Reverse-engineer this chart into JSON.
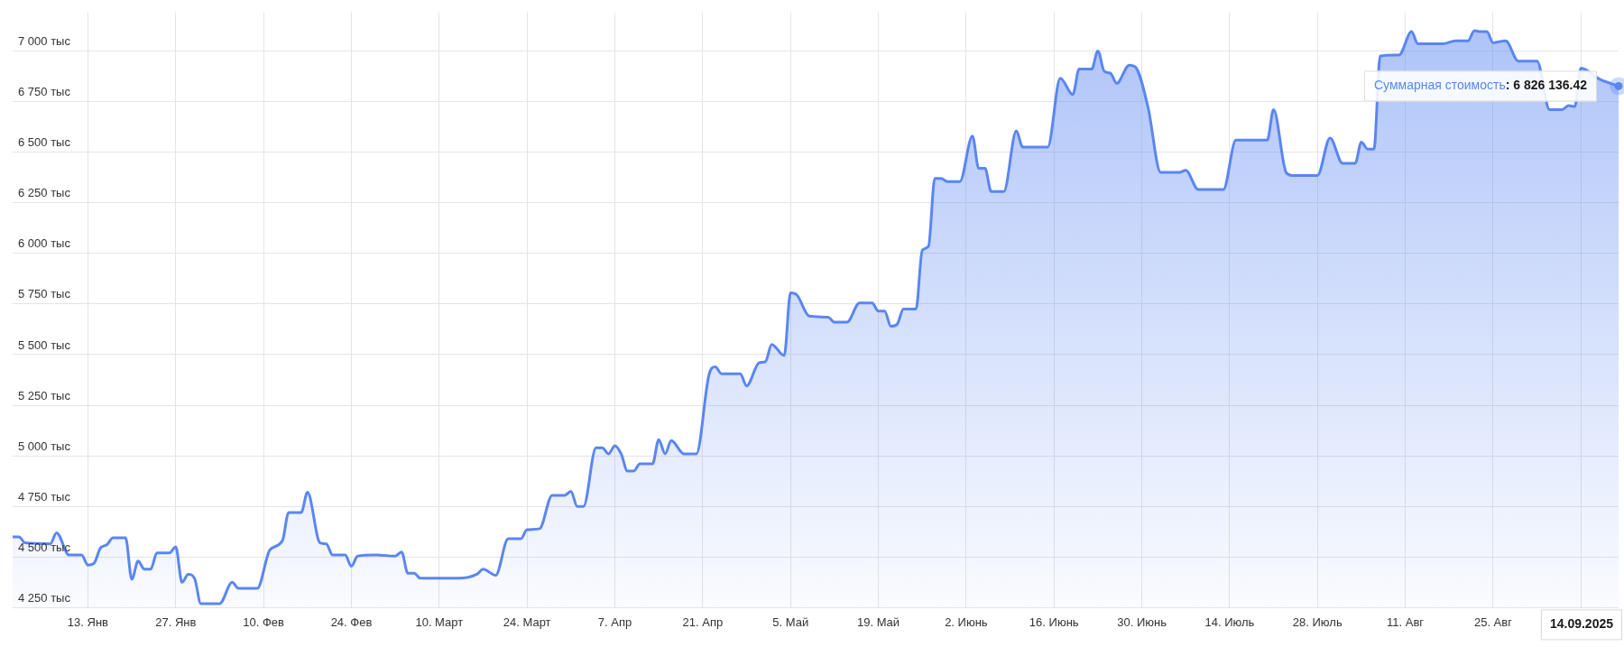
{
  "chart_data": {
    "type": "area",
    "grid": true,
    "legend": false,
    "marker": "none",
    "line_style": "solid",
    "xlim": [
      "2025-01-01",
      "2025-09-14"
    ],
    "xticks": [
      {
        "value": "2025-01-13",
        "label": "13. Янв"
      },
      {
        "value": "2025-01-27",
        "label": "27. Янв"
      },
      {
        "value": "2025-02-10",
        "label": "10. Фев"
      },
      {
        "value": "2025-02-24",
        "label": "24. Фев"
      },
      {
        "value": "2025-03-10",
        "label": "10. Март"
      },
      {
        "value": "2025-03-24",
        "label": "24. Март"
      },
      {
        "value": "2025-04-07",
        "label": "7. Апр"
      },
      {
        "value": "2025-04-21",
        "label": "21. Апр"
      },
      {
        "value": "2025-05-05",
        "label": "5. Май"
      },
      {
        "value": "2025-05-19",
        "label": "19. Май"
      },
      {
        "value": "2025-06-02",
        "label": "2. Июнь"
      },
      {
        "value": "2025-06-16",
        "label": "16. Июнь"
      },
      {
        "value": "2025-06-30",
        "label": "30. Июнь"
      },
      {
        "value": "2025-07-14",
        "label": "14. Июль"
      },
      {
        "value": "2025-07-28",
        "label": "28. Июль"
      },
      {
        "value": "2025-08-11",
        "label": "11. Авг"
      },
      {
        "value": "2025-08-25",
        "label": "25. Авг"
      },
      {
        "value": "2025-09-08",
        "label": null
      }
    ],
    "ylim": [
      4250,
      7190
    ],
    "yticks": [
      {
        "value": 4250,
        "label": "4 250 тыс"
      },
      {
        "value": 4500,
        "label": "4 500 тыс"
      },
      {
        "value": 4750,
        "label": "4 750 тыс"
      },
      {
        "value": 5000,
        "label": "5 000 тыс"
      },
      {
        "value": 5250,
        "label": "5 250 тыс"
      },
      {
        "value": 5500,
        "label": "5 500 тыс"
      },
      {
        "value": 5750,
        "label": "5 750 тыс"
      },
      {
        "value": 6000,
        "label": "6 000 тыс"
      },
      {
        "value": 6250,
        "label": "6 250 тыс"
      },
      {
        "value": 6500,
        "label": "6 500 тыс"
      },
      {
        "value": 6750,
        "label": "6 750 тыс"
      },
      {
        "value": 7000,
        "label": "7 000 тыс"
      }
    ],
    "annotations": [
      {
        "text": "Суммарная стоимость: 6 826 136.42",
        "x": "2025-09-14",
        "y": 6826.13642
      },
      "14.09.2025"
    ],
    "series": [
      {
        "color": "#5a86f2",
        "x": [
          "2025-01-01",
          "2025-01-02",
          "2025-01-03",
          "2025-01-07",
          "2025-01-08",
          "2025-01-10",
          "2025-01-12",
          "2025-01-13",
          "2025-01-14",
          "2025-01-15",
          "2025-01-16",
          "2025-01-17",
          "2025-01-19",
          "2025-01-20",
          "2025-01-21",
          "2025-01-22",
          "2025-01-23",
          "2025-01-24",
          "2025-01-26",
          "2025-01-27",
          "2025-01-28",
          "2025-01-29",
          "2025-01-30",
          "2025-01-31",
          "2025-02-03",
          "2025-02-05",
          "2025-02-06",
          "2025-02-09",
          "2025-02-11",
          "2025-02-13",
          "2025-02-14",
          "2025-02-16",
          "2025-02-17",
          "2025-02-19",
          "2025-02-20",
          "2025-02-21",
          "2025-02-23",
          "2025-02-24",
          "2025-02-25",
          "2025-02-28",
          "2025-03-03",
          "2025-03-04",
          "2025-03-05",
          "2025-03-06",
          "2025-03-07",
          "2025-03-13",
          "2025-03-16",
          "2025-03-17",
          "2025-03-19",
          "2025-03-21",
          "2025-03-23",
          "2025-03-24",
          "2025-03-26",
          "2025-03-28",
          "2025-03-30",
          "2025-03-31",
          "2025-04-01",
          "2025-04-02",
          "2025-04-04",
          "2025-04-05",
          "2025-04-06",
          "2025-04-07",
          "2025-04-08",
          "2025-04-09",
          "2025-04-10",
          "2025-04-11",
          "2025-04-13",
          "2025-04-14",
          "2025-04-15",
          "2025-04-16",
          "2025-04-18",
          "2025-04-20",
          "2025-04-22",
          "2025-04-23",
          "2025-04-24",
          "2025-04-27",
          "2025-04-28",
          "2025-04-30",
          "2025-05-01",
          "2025-05-02",
          "2025-05-04",
          "2025-05-05",
          "2025-05-06",
          "2025-05-08",
          "2025-05-11",
          "2025-05-12",
          "2025-05-14",
          "2025-05-16",
          "2025-05-18",
          "2025-05-19",
          "2025-05-20",
          "2025-05-21",
          "2025-05-22",
          "2025-05-23",
          "2025-05-25",
          "2025-05-26",
          "2025-05-27",
          "2025-05-28",
          "2025-05-29",
          "2025-05-30",
          "2025-06-01",
          "2025-06-03",
          "2025-06-04",
          "2025-06-05",
          "2025-06-06",
          "2025-06-08",
          "2025-06-10",
          "2025-06-11",
          "2025-06-15",
          "2025-06-17",
          "2025-06-19",
          "2025-06-20",
          "2025-06-22",
          "2025-06-23",
          "2025-06-24",
          "2025-06-25",
          "2025-06-26",
          "2025-06-28",
          "2025-06-29",
          "2025-07-01",
          "2025-07-03",
          "2025-07-06",
          "2025-07-07",
          "2025-07-09",
          "2025-07-13",
          "2025-07-15",
          "2025-07-20",
          "2025-07-21",
          "2025-07-23",
          "2025-07-24",
          "2025-07-28",
          "2025-07-30",
          "2025-08-01",
          "2025-08-03",
          "2025-08-04",
          "2025-08-05",
          "2025-08-06",
          "2025-08-07",
          "2025-08-10",
          "2025-08-12",
          "2025-08-13",
          "2025-08-17",
          "2025-08-19",
          "2025-08-21",
          "2025-08-22",
          "2025-08-23",
          "2025-08-24",
          "2025-08-25",
          "2025-08-27",
          "2025-08-29",
          "2025-09-01",
          "2025-09-03",
          "2025-09-05",
          "2025-09-06",
          "2025-09-07",
          "2025-09-08",
          "2025-09-11",
          "2025-09-14"
        ],
        "values": [
          4600,
          4600,
          4570,
          4565,
          4620,
          4510,
          4510,
          4460,
          4470,
          4545,
          4560,
          4595,
          4595,
          4390,
          4480,
          4440,
          4440,
          4520,
          4520,
          4550,
          4375,
          4415,
          4395,
          4270,
          4270,
          4375,
          4345,
          4345,
          4535,
          4580,
          4720,
          4720,
          4820,
          4570,
          4565,
          4510,
          4510,
          4455,
          4505,
          4510,
          4505,
          4525,
          4420,
          4420,
          4395,
          4395,
          4415,
          4440,
          4410,
          4590,
          4590,
          4635,
          4640,
          4805,
          4805,
          4825,
          4750,
          4750,
          5040,
          5040,
          5010,
          5050,
          5010,
          4925,
          4925,
          4960,
          4960,
          5080,
          5010,
          5075,
          5010,
          5010,
          5400,
          5440,
          5405,
          5405,
          5345,
          5460,
          5465,
          5550,
          5495,
          5805,
          5795,
          5690,
          5685,
          5660,
          5660,
          5755,
          5755,
          5715,
          5715,
          5640,
          5650,
          5725,
          5725,
          6015,
          6035,
          6370,
          6370,
          6355,
          6355,
          6580,
          6420,
          6420,
          6305,
          6305,
          6605,
          6525,
          6525,
          6865,
          6785,
          6910,
          6910,
          7000,
          6900,
          6890,
          6840,
          6930,
          6920,
          6720,
          6400,
          6400,
          6410,
          6315,
          6315,
          6560,
          6560,
          6710,
          6400,
          6385,
          6385,
          6570,
          6445,
          6445,
          6550,
          6515,
          6515,
          6975,
          6980,
          7095,
          7035,
          7035,
          7050,
          7050,
          7100,
          7095,
          7095,
          7040,
          7050,
          6950,
          6950,
          6710,
          6710,
          6730,
          6725,
          6915,
          6860,
          6826.13642
        ]
      }
    ]
  }
}
